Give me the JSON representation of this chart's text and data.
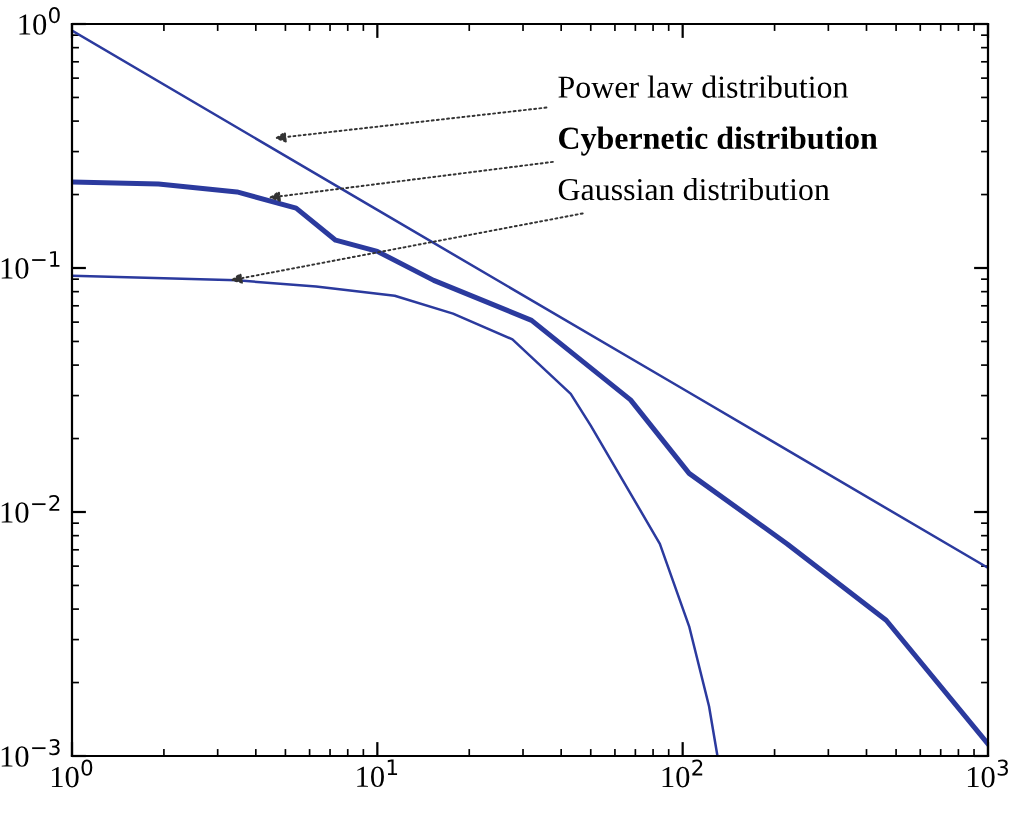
{
  "chart_data": {
    "type": "line",
    "log": "xy",
    "xlim": [
      1,
      1000
    ],
    "ylim": [
      0.001,
      1
    ],
    "xticks": [
      {
        "value": 1,
        "label": "10$^{0}$"
      },
      {
        "value": 10,
        "label": "10$^{1}$"
      },
      {
        "value": 100,
        "label": "10$^{2}$"
      },
      {
        "value": 1000,
        "label": "10$^{3}$"
      }
    ],
    "yticks": [
      {
        "value": 0.001,
        "label": "10$^{−3}$"
      },
      {
        "value": 0.01,
        "label": "10$^{−2}$"
      },
      {
        "value": 0.1,
        "label": "10$^{−1}$"
      },
      {
        "value": 1,
        "label": "10$^{0}$"
      }
    ],
    "grid": false,
    "marker": "none",
    "line_style": "solid",
    "series": [
      {
        "color": "#2b3a9e",
        "x": [
          1,
          10,
          100,
          1000
        ],
        "values": [
          0.94,
          0.173,
          0.032,
          0.0059
        ]
      },
      {
        "color": "#2b3a9e",
        "x": [
          1,
          1.92,
          3.47,
          5.42,
          7.3,
          10,
          15.3,
          32,
          67.5,
          105,
          220,
          464,
          1000
        ],
        "values": [
          0.225,
          0.221,
          0.205,
          0.176,
          0.13,
          0.117,
          0.089,
          0.061,
          0.0288,
          0.0144,
          0.0074,
          0.0036,
          0.00112
        ]
      },
      {
        "color": "#2b3a9e",
        "x": [
          1,
          3.47,
          6.3,
          11.4,
          17.7,
          27.7,
          43,
          50,
          67.5,
          84.2,
          105,
          122,
          130
        ],
        "values": [
          0.093,
          0.089,
          0.084,
          0.077,
          0.065,
          0.051,
          0.0305,
          0.0226,
          0.0119,
          0.0074,
          0.0034,
          0.0016,
          0.001
        ]
      }
    ],
    "annotations": [
      {
        "text": "Power law distribution",
        "x": 4.6,
        "y": 0.34
      },
      {
        "text": "Cybernetic distribution",
        "x": 4.4,
        "y": 0.194
      },
      {
        "text": "Gaussian distribution",
        "x": 3.3,
        "y": 0.089
      }
    ]
  }
}
